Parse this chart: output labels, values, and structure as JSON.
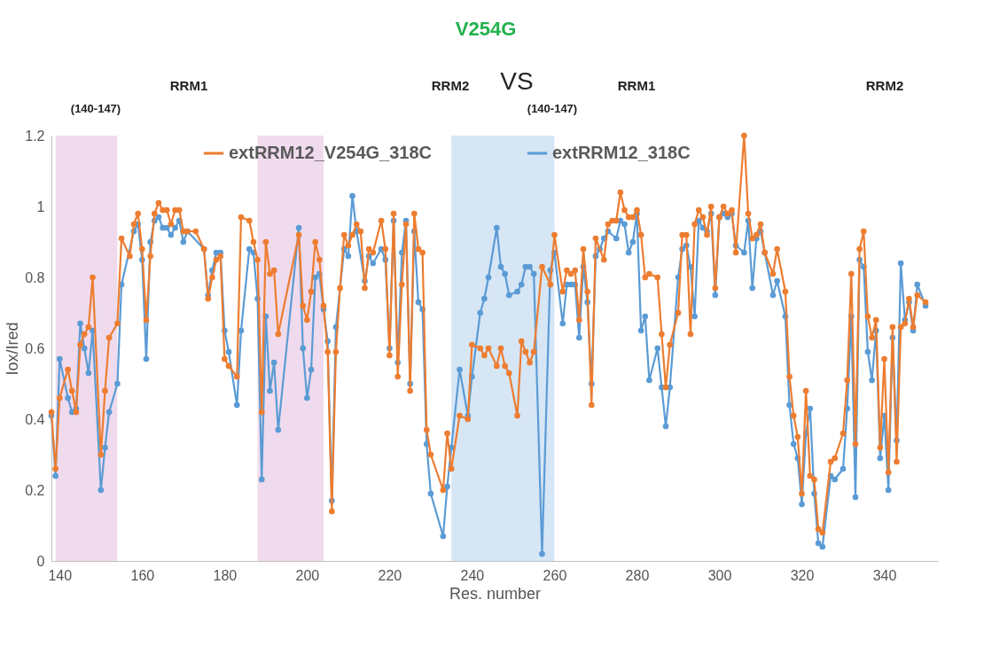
{
  "chart_data": {
    "type": "line",
    "xlabel": "Res. number",
    "ylabel": "Iox/Ired",
    "annotations": [
      "V254G",
      "RRM1",
      "RRM2",
      "(140-147)",
      "VS",
      "RRM1",
      "RRM2",
      "(140-147)"
    ],
    "xlim": [
      138,
      353
    ],
    "xticks": [
      140,
      160,
      180,
      200,
      220,
      240,
      260,
      280,
      300,
      320,
      340
    ],
    "ylim": [
      0,
      1.2
    ],
    "yticks": [
      0,
      0.2,
      0.4,
      0.6,
      0.8,
      1,
      1.2
    ],
    "grid": false,
    "legend": "top left",
    "marker": "circle",
    "line_style": "solid",
    "bands": [
      {
        "axis": "x",
        "from": 139,
        "to": 154,
        "color": "#ecd5ea"
      },
      {
        "axis": "x",
        "from": 188,
        "to": 204,
        "color": "#ecd5ea"
      },
      {
        "axis": "x",
        "from": 235,
        "to": 260,
        "color": "#cfe2f3"
      }
    ],
    "series": [
      {
        "name": "extRRM12_318C",
        "color": "#5b9bd5",
        "x": [
          138,
          139,
          140,
          142,
          143,
          144,
          145,
          146,
          147,
          148,
          150,
          151,
          152,
          154,
          155,
          158,
          159,
          160,
          161,
          162,
          163,
          164,
          165,
          166,
          167,
          168,
          169,
          170,
          171,
          175,
          176,
          177,
          178,
          179,
          180,
          181,
          183,
          184,
          186,
          187,
          188,
          189,
          190,
          191,
          192,
          193,
          198,
          199,
          200,
          201,
          202,
          203,
          204,
          205,
          206,
          207,
          209,
          210,
          211,
          212,
          214,
          215,
          216,
          218,
          219,
          220,
          221,
          222,
          223,
          224,
          225,
          226,
          227,
          228,
          229,
          230,
          233,
          234,
          235,
          237,
          239,
          240,
          242,
          243,
          244,
          246,
          247,
          248,
          249,
          251,
          252,
          253,
          254,
          255,
          257,
          259,
          260,
          262,
          263,
          264,
          265,
          266,
          267,
          268,
          269,
          270,
          271,
          272,
          273,
          275,
          276,
          277,
          278,
          279,
          280,
          281,
          282,
          283,
          285,
          286,
          287,
          288,
          290,
          291,
          292,
          293,
          294,
          295,
          296,
          297,
          298,
          299,
          300,
          301,
          302,
          303,
          304,
          306,
          307,
          308,
          309,
          310,
          311,
          313,
          314,
          316,
          317,
          318,
          319,
          320,
          321,
          322,
          323,
          324,
          325,
          327,
          328,
          330,
          331,
          332,
          333,
          334,
          335,
          336,
          337,
          338,
          339,
          340,
          341,
          342,
          343,
          344,
          345,
          346,
          347,
          348,
          350
        ],
        "values": [
          0.41,
          0.24,
          0.57,
          0.46,
          0.42,
          0.43,
          0.67,
          0.6,
          0.53,
          0.65,
          0.2,
          0.32,
          0.42,
          0.5,
          0.78,
          0.93,
          0.95,
          0.85,
          0.57,
          0.9,
          0.96,
          0.97,
          0.94,
          0.94,
          0.92,
          0.94,
          0.96,
          0.9,
          0.93,
          0.88,
          0.75,
          0.82,
          0.87,
          0.87,
          0.65,
          0.59,
          0.44,
          0.65,
          0.88,
          0.87,
          0.74,
          0.23,
          0.69,
          0.48,
          0.56,
          0.37,
          0.94,
          0.6,
          0.46,
          0.54,
          0.8,
          0.81,
          0.71,
          0.62,
          0.17,
          0.66,
          0.88,
          0.86,
          1.03,
          0.93,
          0.79,
          0.86,
          0.84,
          0.88,
          0.85,
          0.6,
          0.96,
          0.56,
          0.87,
          0.96,
          0.5,
          0.93,
          0.73,
          0.71,
          0.33,
          0.19,
          0.07,
          0.21,
          0.32,
          0.54,
          0.41,
          0.52,
          0.7,
          0.74,
          0.8,
          0.94,
          0.83,
          0.81,
          0.75,
          0.76,
          0.78,
          0.83,
          0.83,
          0.81,
          0.02,
          0.82,
          0.87,
          0.67,
          0.78,
          0.78,
          0.78,
          0.63,
          0.83,
          0.73,
          0.5,
          0.86,
          0.88,
          0.91,
          0.93,
          0.91,
          0.96,
          0.95,
          0.87,
          0.9,
          0.98,
          0.65,
          0.69,
          0.51,
          0.6,
          0.49,
          0.38,
          0.49,
          0.8,
          0.88,
          0.89,
          0.83,
          0.69,
          0.96,
          0.94,
          0.93,
          0.98,
          0.75,
          0.97,
          0.98,
          0.97,
          0.98,
          0.89,
          0.87,
          0.96,
          0.77,
          0.91,
          0.93,
          0.87,
          0.75,
          0.79,
          0.69,
          0.44,
          0.33,
          0.29,
          0.16,
          0.36,
          0.43,
          0.19,
          0.05,
          0.04,
          0.24,
          0.23,
          0.26,
          0.43,
          0.69,
          0.18,
          0.85,
          0.83,
          0.59,
          0.51,
          0.65,
          0.29,
          0.41,
          0.2,
          0.63,
          0.34,
          0.84,
          0.68,
          0.73,
          0.65,
          0.78,
          0.72
        ]
      },
      {
        "name": "extRRM12_V254G_318C",
        "color": "#ed7d31",
        "x": [
          138,
          139,
          140,
          142,
          143,
          144,
          145,
          146,
          147,
          148,
          150,
          151,
          152,
          154,
          155,
          157,
          158,
          159,
          160,
          161,
          162,
          163,
          164,
          165,
          166,
          167,
          168,
          169,
          170,
          171,
          173,
          175,
          176,
          177,
          178,
          179,
          180,
          181,
          183,
          184,
          186,
          187,
          188,
          189,
          190,
          191,
          192,
          193,
          198,
          199,
          200,
          201,
          202,
          203,
          204,
          205,
          206,
          207,
          208,
          209,
          210,
          211,
          212,
          213,
          214,
          215,
          216,
          218,
          219,
          220,
          221,
          222,
          223,
          224,
          225,
          226,
          227,
          228,
          229,
          230,
          233,
          234,
          235,
          237,
          239,
          240,
          242,
          243,
          244,
          246,
          247,
          248,
          249,
          251,
          252,
          253,
          254,
          255,
          257,
          259,
          260,
          262,
          263,
          264,
          265,
          266,
          267,
          268,
          269,
          270,
          272,
          273,
          274,
          275,
          276,
          277,
          278,
          279,
          280,
          281,
          282,
          283,
          285,
          286,
          287,
          288,
          290,
          291,
          292,
          293,
          294,
          295,
          296,
          297,
          298,
          299,
          300,
          301,
          302,
          303,
          304,
          306,
          307,
          308,
          309,
          310,
          311,
          313,
          314,
          316,
          317,
          318,
          319,
          320,
          321,
          322,
          323,
          324,
          325,
          327,
          328,
          330,
          331,
          332,
          333,
          334,
          335,
          336,
          337,
          338,
          339,
          340,
          341,
          342,
          343,
          344,
          345,
          346,
          347,
          348,
          350
        ],
        "values": [
          0.42,
          0.26,
          0.46,
          0.54,
          0.48,
          0.42,
          0.61,
          0.64,
          0.66,
          0.8,
          0.3,
          0.48,
          0.63,
          0.67,
          0.91,
          0.86,
          0.95,
          0.98,
          0.88,
          0.68,
          0.86,
          0.98,
          1.01,
          0.99,
          0.99,
          0.95,
          0.99,
          0.99,
          0.93,
          0.93,
          0.93,
          0.88,
          0.74,
          0.8,
          0.85,
          0.86,
          0.57,
          0.55,
          0.52,
          0.97,
          0.96,
          0.9,
          0.85,
          0.42,
          0.9,
          0.81,
          0.82,
          0.64,
          0.92,
          0.72,
          0.68,
          0.76,
          0.9,
          0.85,
          0.72,
          0.59,
          0.14,
          0.59,
          0.77,
          0.92,
          0.89,
          0.92,
          0.95,
          0.93,
          0.77,
          0.88,
          0.87,
          0.96,
          0.88,
          0.58,
          0.98,
          0.52,
          0.78,
          0.95,
          0.48,
          0.98,
          0.88,
          0.87,
          0.37,
          0.3,
          0.2,
          0.36,
          0.26,
          0.41,
          0.4,
          0.61,
          0.6,
          0.58,
          0.6,
          0.55,
          0.6,
          0.55,
          0.53,
          0.41,
          0.62,
          0.59,
          0.56,
          0.59,
          0.83,
          0.78,
          0.92,
          0.76,
          0.82,
          0.81,
          0.82,
          0.68,
          0.88,
          0.76,
          0.44,
          0.91,
          0.85,
          0.95,
          0.96,
          0.96,
          1.04,
          0.99,
          0.97,
          0.97,
          0.99,
          0.92,
          0.8,
          0.81,
          0.8,
          0.64,
          0.49,
          0.61,
          0.7,
          0.92,
          0.92,
          0.64,
          0.95,
          0.99,
          0.97,
          0.92,
          1.0,
          0.77,
          0.97,
          1.0,
          0.98,
          0.99,
          0.87,
          1.2,
          0.98,
          0.91,
          0.92,
          0.95,
          0.87,
          0.81,
          0.88,
          0.76,
          0.52,
          0.41,
          0.35,
          0.19,
          0.48,
          0.24,
          0.23,
          0.09,
          0.08,
          0.28,
          0.29,
          0.36,
          0.51,
          0.81,
          0.33,
          0.88,
          0.93,
          0.69,
          0.63,
          0.68,
          0.32,
          0.57,
          0.25,
          0.66,
          0.28,
          0.66,
          0.67,
          0.74,
          0.66,
          0.75,
          0.73
        ]
      }
    ]
  }
}
